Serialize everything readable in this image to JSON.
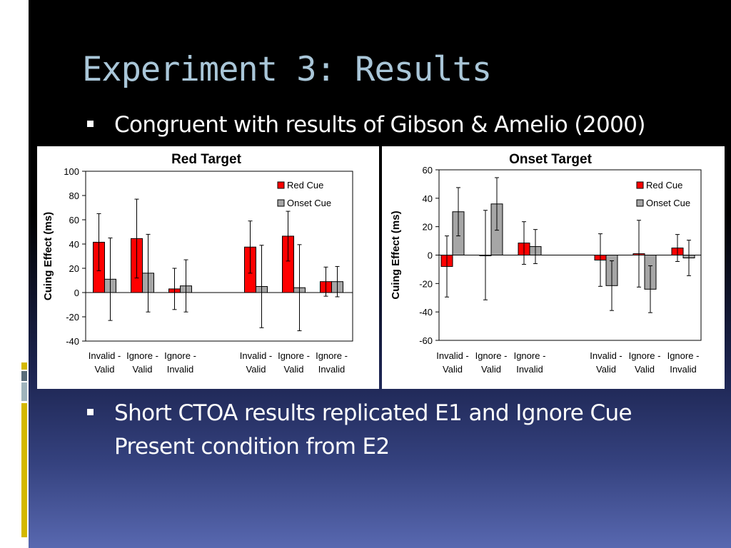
{
  "slide": {
    "title": "Experiment 3: Results",
    "bullets": [
      "Congruent with results of Gibson & Amelio (2000)",
      "Short CTOA results replicated E1 and Ignore Cue Present condition from E2"
    ],
    "colors": {
      "title": "#a9c6d8",
      "accent_yellow": "#d4b800",
      "accent_slate": "#5a6d7a",
      "accent_grey": "#9fb3bc"
    }
  },
  "chart_data": [
    {
      "type": "bar",
      "title": "Red Target",
      "ylabel": "Cuing Effect (ms)",
      "ylim": [
        -40,
        100
      ],
      "yticks": [
        100,
        80,
        60,
        40,
        20,
        0,
        -20,
        -40
      ],
      "categories": [
        "Invalid - Valid",
        "Ignore - Valid",
        "Ignore - Invalid",
        "Invalid - Valid",
        "Ignore - Valid",
        "Ignore - Invalid"
      ],
      "category_groups": [
        [
          0,
          1,
          2
        ],
        [
          3,
          4,
          5
        ]
      ],
      "legend_position": "top-right",
      "grid": false,
      "series": [
        {
          "name": "Red Cue",
          "color": "#ff0000",
          "values": [
            41.5,
            44.5,
            3,
            37.5,
            46.5,
            9
          ],
          "error": [
            23.5,
            32.5,
            17,
            21.5,
            20.5,
            12
          ]
        },
        {
          "name": "Onset Cue",
          "color": "#a6a6a6",
          "values": [
            11,
            16,
            5.5,
            5,
            4,
            9
          ],
          "error": [
            34,
            32,
            21.5,
            34,
            35.5,
            12.5
          ]
        }
      ]
    },
    {
      "type": "bar",
      "title": "Onset Target",
      "ylabel": "Cuing Effect (ms)",
      "ylim": [
        -60,
        60
      ],
      "yticks": [
        60,
        40,
        20,
        0,
        -20,
        -40,
        -60
      ],
      "categories": [
        "Invalid - Valid",
        "Ignore - Valid",
        "Ignore - Invalid",
        "Invalid - Valid",
        "Ignore - Valid",
        "Ignore - Invalid"
      ],
      "category_groups": [
        [
          0,
          1,
          2
        ],
        [
          3,
          4,
          5
        ]
      ],
      "legend_position": "top-right",
      "grid": false,
      "series": [
        {
          "name": "Red Cue",
          "color": "#ff0000",
          "values": [
            -8,
            0,
            8.5,
            -3.5,
            1,
            5
          ],
          "error": [
            21.5,
            31.5,
            15,
            18.5,
            23.5,
            9.5
          ]
        },
        {
          "name": "Onset Cue",
          "color": "#a6a6a6",
          "values": [
            30.5,
            36,
            6,
            -21.5,
            -24,
            -2
          ],
          "error": [
            17,
            18.5,
            12,
            17.5,
            16.5,
            12.5
          ]
        }
      ]
    }
  ]
}
